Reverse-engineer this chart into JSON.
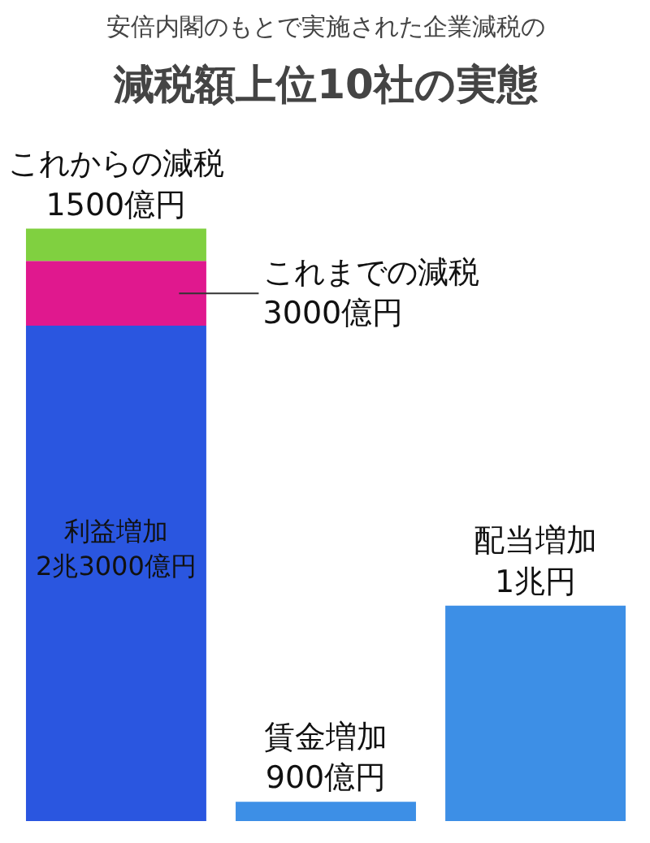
{
  "chart_data": {
    "type": "bar",
    "title": "減税額上位10社の実態",
    "subtitle": "安倍内閣のもとで実施された企業減税の",
    "categories": [
      null,
      null,
      null
    ],
    "stacked": true,
    "series": [
      {
        "colors": [
          "#2a56e0",
          "#3d8fe6",
          "#3d8fe6"
        ],
        "values": [
          23000,
          900,
          10000
        ],
        "value_labels": [
          "利益増加\n2兆3000億円",
          "賃金増加\n900億円",
          "配当増加\n1兆円"
        ]
      },
      {
        "color": "#e0188e",
        "values": [
          3000,
          null,
          null
        ],
        "value_labels": [
          "これまでの減税\n3000億円",
          null,
          null
        ]
      },
      {
        "color": "#80d040",
        "values": [
          1500,
          null,
          null
        ],
        "value_labels": [
          "これからの減税\n1500億円",
          null,
          null
        ]
      }
    ]
  }
}
